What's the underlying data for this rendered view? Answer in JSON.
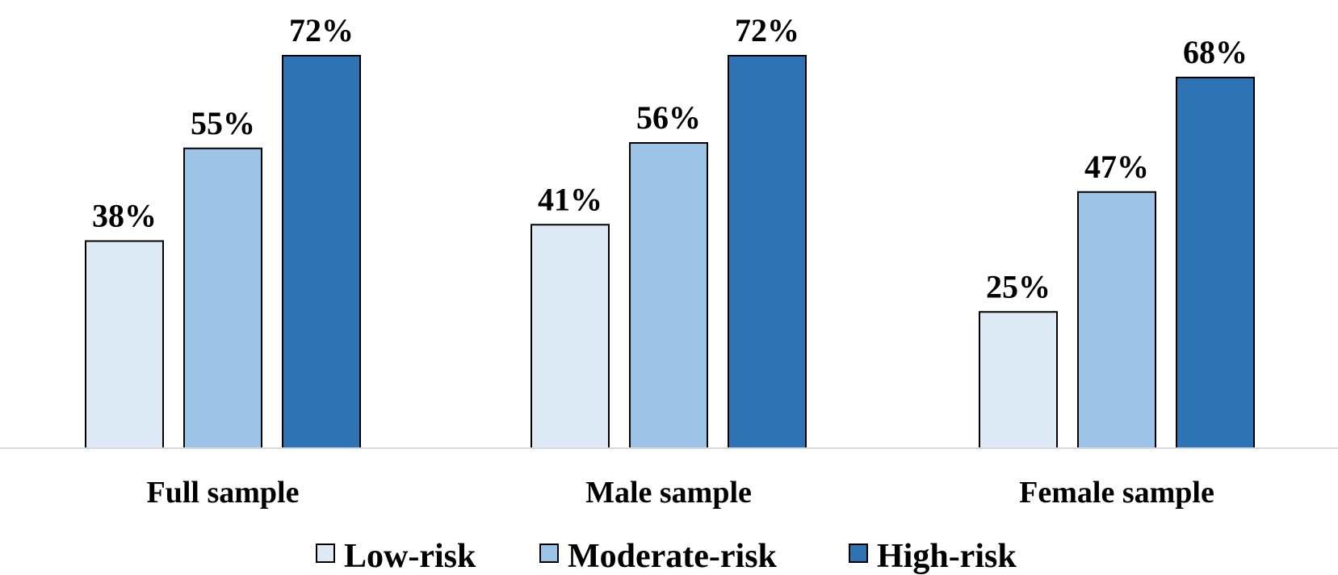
{
  "chart_data": {
    "type": "bar",
    "categories": [
      "Full sample",
      "Male sample",
      "Female sample"
    ],
    "series": [
      {
        "name": "Low-risk",
        "values": [
          38,
          41,
          25
        ],
        "labels": [
          "38%",
          "41%",
          "25%"
        ],
        "color": "#DEEAF6"
      },
      {
        "name": "Moderate-risk",
        "values": [
          55,
          56,
          47
        ],
        "labels": [
          "55%",
          "56%",
          "47%"
        ],
        "color": "#9DC3E6"
      },
      {
        "name": "High-risk",
        "values": [
          72,
          72,
          68
        ],
        "labels": [
          "72%",
          "72%",
          "68%"
        ],
        "color": "#2E74B5"
      }
    ],
    "ylim": [
      0,
      80
    ],
    "legend": "bottom",
    "grid": false
  }
}
